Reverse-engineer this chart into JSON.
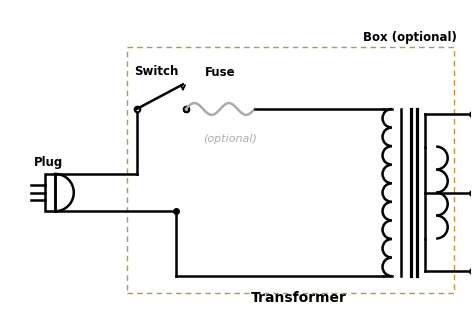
{
  "bg_color": "#ffffff",
  "line_color": "#000000",
  "fuse_color": "#aaaaaa",
  "optional_text_color": "#aaaaaa",
  "dashed_box_color": "#c8903a",
  "box_label": "Box (optional)",
  "plug_label": "Plug",
  "switch_label": "Switch",
  "fuse_label": "Fuse",
  "fuse_optional": "(optional)",
  "transformer_label": "Transformer",
  "figsize": [
    4.74,
    3.33
  ],
  "dpi": 100
}
